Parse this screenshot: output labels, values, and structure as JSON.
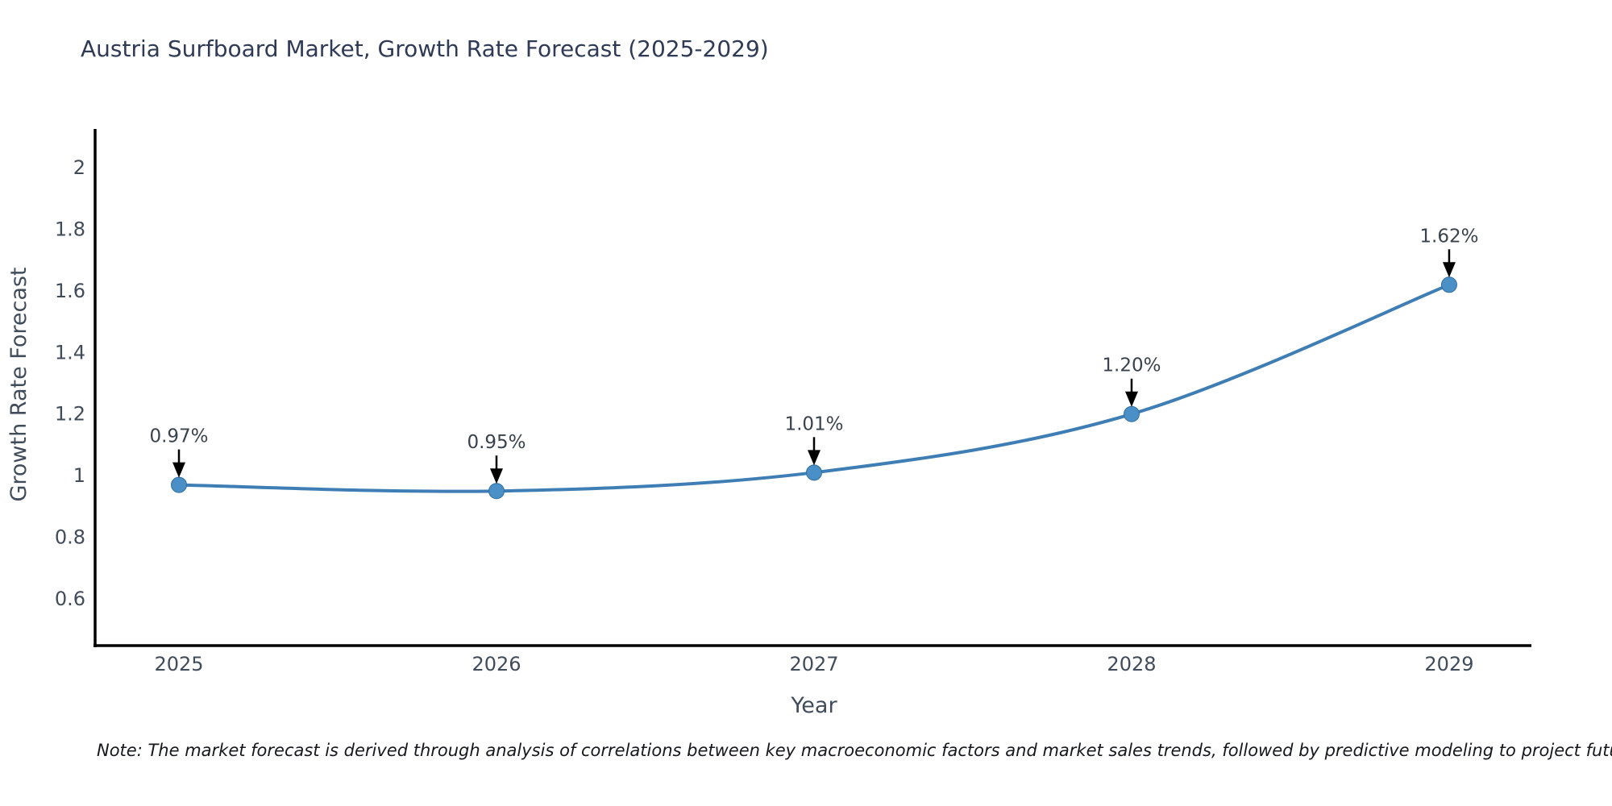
{
  "page": {
    "title": "Austria Surfboard Market, Growth Rate Forecast (2025-2029)",
    "note": "Note: The market forecast is derived through analysis of correlations between key macroeconomic factors and market sales trends, followed by predictive modeling to project future sales"
  },
  "chart_data": {
    "type": "line",
    "title": "Austria Surfboard Market, Growth Rate Forecast (2025-2029)",
    "x": [
      2025,
      2026,
      2027,
      2028,
      2029
    ],
    "xtick_labels": [
      "2025",
      "2026",
      "2027",
      "2028",
      "2029"
    ],
    "series": [
      {
        "name": "Growth Rate Forecast",
        "values": [
          0.97,
          0.95,
          1.01,
          1.2,
          1.62
        ]
      }
    ],
    "point_labels": [
      "0.97%",
      "0.95%",
      "1.01%",
      "1.20%",
      "1.62%"
    ],
    "xlabel": "Year",
    "ylabel": "Growth Rate Forecast",
    "yticks": [
      2,
      1.8,
      1.6,
      1.4,
      1.2,
      1,
      0.8,
      0.6
    ],
    "ytick_labels": [
      "2",
      "1.8",
      "1.6",
      "1.4",
      "1.2",
      "1",
      "0.8",
      "0.6"
    ],
    "ylim": [
      0.448,
      2.126
    ],
    "xlim": [
      2024.736,
      2029.259
    ],
    "grid": false,
    "legend_position": "none",
    "smooth": true,
    "marker": "circle",
    "colors": {
      "line": "#3F7EB5",
      "marker": "#4A8FC5",
      "marker_edge": "#2F6DA3",
      "axis": "#000000",
      "tick_text": "#414C5B",
      "axis_label_text": "#414C5B",
      "title_text": "#2E3A56",
      "annotation_text": "#3A434D",
      "arrow": "#000000",
      "background": "#FFFFFF"
    }
  }
}
